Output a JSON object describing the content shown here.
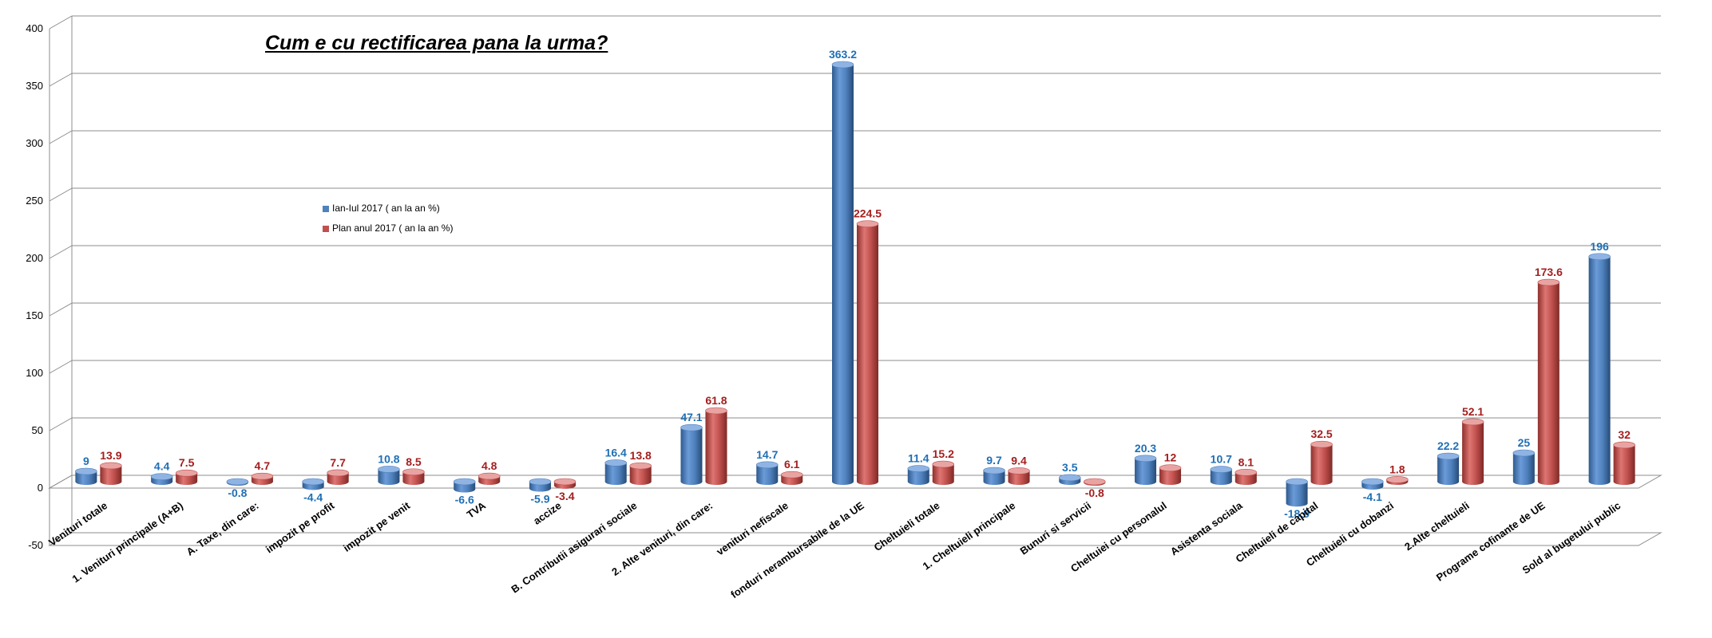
{
  "chart_data": {
    "type": "bar",
    "title": "Cum e cu rectificarea pana la urma?",
    "xlabel": "",
    "ylabel": "",
    "ylim": [
      -50,
      400
    ],
    "yticks": [
      -50,
      0,
      50,
      100,
      150,
      200,
      250,
      300,
      350,
      400
    ],
    "grid": true,
    "legend_position": "middle-left",
    "categories": [
      "Venituri totale",
      "1. Venituri principale (A+B)",
      "A. Taxe, din care:",
      "impozit pe profit",
      "impozit pe venit",
      "TVA",
      "accize",
      "B. Contributii asigurari sociale",
      "2. Alte venituri, din care:",
      "venituri nefiscale",
      "fonduri nerambursabile de la UE",
      "Cheltuieli totale",
      "1. Cheltuieli principale",
      "Bunuri si servicii",
      "Cheltuiei cu personalul",
      "Asistenta sociala",
      "Cheltuieli de capital",
      "Cheltuieli cu dobanzi",
      "2.Alte cheltuieli",
      "Programe cofinante de UE",
      "Sold al bugetului public"
    ],
    "series": [
      {
        "name": "Ian-Iul 2017 ( an la an %)",
        "color": "#4F81BD",
        "label_color": "#1F6FB5",
        "values": [
          9,
          4.4,
          -0.8,
          -4.4,
          10.8,
          -6.6,
          -5.9,
          16.4,
          47.1,
          14.7,
          363.2,
          11.4,
          9.7,
          3.5,
          20.3,
          10.7,
          -18.9,
          -4.1,
          22.2,
          25,
          196
        ]
      },
      {
        "name": "Plan anul 2017 ( an la an %)",
        "color": "#C0504D",
        "label_color": "#A51E1E",
        "values": [
          13.9,
          7.5,
          4.7,
          7.7,
          8.5,
          4.8,
          -3.4,
          13.8,
          61.8,
          6.1,
          224.5,
          15.2,
          9.4,
          -0.8,
          12,
          8.1,
          32.5,
          1.8,
          52.1,
          173.6,
          32
        ]
      }
    ]
  }
}
